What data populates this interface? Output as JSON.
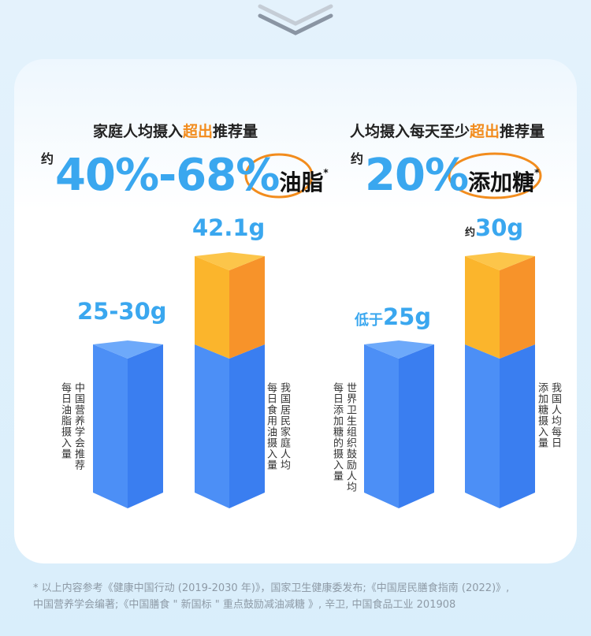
{
  "panels": [
    {
      "heading": [
        "家庭人均摄入",
        "超出",
        "推荐量"
      ],
      "prefix": "约",
      "figure": "40%-68%",
      "subject": "油脂",
      "mark": "*",
      "bars": [
        {
          "value_prefix": "",
          "value": "25-30g",
          "lines": [
            "中国营养学会推荐",
            "每日油脂摄入量"
          ]
        },
        {
          "value_prefix": "",
          "value": "42.1g",
          "lines": [
            "我国居民家庭人均",
            "每日食用油摄入量"
          ]
        }
      ]
    },
    {
      "heading": [
        "人均摄入每天至少",
        "超出",
        "推荐量"
      ],
      "prefix": "约",
      "figure": "20%",
      "subject": "添加糖",
      "mark": "*",
      "bars": [
        {
          "value_prefix": "低于",
          "value": "25g",
          "lines": [
            "世界卫生组织鼓励人均",
            "每日添加糖的摄入量"
          ]
        },
        {
          "value_prefix": "约",
          "value": "30g",
          "lines": [
            "我国人均每日",
            "添加糖摄入量"
          ]
        }
      ]
    }
  ],
  "footnote": [
    "* 以上内容参考《健康中国行动 (2019-2030 年)》，国家卫生健康委发布;《中国居民膳食指南 (2022)》,",
    "中国营养学会编著;《中国膳食 \" 新国标 \" 重点鼓励减油减糖 》, 辛卫, 中国食品工业 201908"
  ]
}
